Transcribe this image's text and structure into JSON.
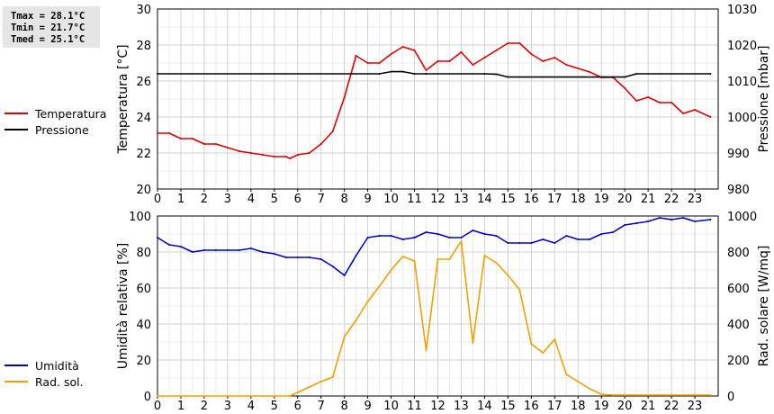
{
  "stats": {
    "tmax": "Tmax = 28.1°C",
    "tmin": "Tmin = 21.7°C",
    "tmed": "Tmed = 25.1°C"
  },
  "chart_data": [
    {
      "type": "line",
      "x_ticks": [
        "0",
        "1",
        "2",
        "3",
        "4",
        "5",
        "6",
        "7",
        "8",
        "9",
        "10",
        "11",
        "12",
        "13",
        "14",
        "15",
        "16",
        "17",
        "18",
        "19",
        "20",
        "21",
        "22",
        "23"
      ],
      "xlim": [
        0,
        24
      ],
      "ylabel_left": "Temperatura [°C]",
      "ylabel_right": "Pressione [mbar]",
      "ylim_left": [
        20,
        30
      ],
      "ylim_right": [
        980,
        1030
      ],
      "yticks_left": [
        "20",
        "22",
        "24",
        "26",
        "28",
        "30"
      ],
      "yticks_right": [
        "980",
        "990",
        "1000",
        "1010",
        "1020",
        "1030"
      ],
      "grid": true,
      "legend_position": "left",
      "series": [
        {
          "name": "Temperatura",
          "axis": "left",
          "color": "#dd0000",
          "x": [
            0,
            0.5,
            1,
            1.5,
            2,
            2.5,
            3,
            3.5,
            4,
            4.5,
            5,
            5.5,
            5.67,
            6,
            6.5,
            7,
            7.5,
            8,
            8.5,
            9,
            9.5,
            10,
            10.5,
            11,
            11.5,
            12,
            12.5,
            13,
            13.5,
            14,
            14.5,
            15,
            15.5,
            16,
            16.5,
            17,
            17.5,
            18,
            18.5,
            19,
            19.5,
            20,
            20.5,
            21,
            21.5,
            22,
            22.5,
            23,
            23.67
          ],
          "values": [
            23.1,
            23.1,
            22.8,
            22.8,
            22.5,
            22.5,
            22.3,
            22.1,
            22.0,
            21.9,
            21.8,
            21.8,
            21.7,
            21.9,
            22.0,
            22.5,
            23.2,
            25.1,
            27.4,
            27.0,
            27.0,
            27.5,
            27.9,
            27.7,
            26.6,
            27.1,
            27.1,
            27.6,
            26.9,
            27.3,
            27.7,
            28.1,
            28.1,
            27.5,
            27.1,
            27.3,
            26.9,
            26.7,
            26.5,
            26.2,
            26.2,
            25.6,
            24.9,
            25.1,
            24.8,
            24.8,
            24.2,
            24.4,
            24.0
          ]
        },
        {
          "name": "Pressione",
          "axis": "right",
          "color": "#000000",
          "x": [
            0,
            9.5,
            10,
            10.5,
            11,
            11.5,
            14,
            14.5,
            15,
            19,
            19.5,
            20,
            20.5,
            23.67
          ],
          "values": [
            1012,
            1012,
            1012.6,
            1012.6,
            1012,
            1012,
            1012,
            1011.9,
            1011.1,
            1011.1,
            1011.1,
            1011.1,
            1012,
            1012
          ]
        }
      ]
    },
    {
      "type": "line",
      "x_ticks": [
        "0",
        "1",
        "2",
        "3",
        "4",
        "5",
        "6",
        "7",
        "8",
        "9",
        "10",
        "11",
        "12",
        "13",
        "14",
        "15",
        "16",
        "17",
        "18",
        "19",
        "20",
        "21",
        "22",
        "23"
      ],
      "xlim": [
        0,
        24
      ],
      "ylabel_left": "Umidità relativa [%]",
      "ylabel_right": "Rad. solare [W/mq]",
      "ylim_left": [
        0,
        100
      ],
      "ylim_right": [
        0,
        1000
      ],
      "yticks_left": [
        "0",
        "20",
        "40",
        "60",
        "80",
        "100"
      ],
      "yticks_right": [
        "0",
        "200",
        "400",
        "600",
        "800",
        "1000"
      ],
      "grid": true,
      "legend_position": "left",
      "series": [
        {
          "name": "Umidità",
          "axis": "left",
          "color": "#0000cc",
          "x": [
            0,
            0.5,
            1,
            1.5,
            2,
            2.5,
            3,
            3.5,
            4,
            4.5,
            5,
            5.5,
            6,
            6.5,
            7,
            7.5,
            8,
            8.5,
            9,
            9.5,
            10,
            10.5,
            11,
            11.5,
            12,
            12.5,
            13,
            13.5,
            14,
            14.5,
            15,
            15.5,
            16,
            16.5,
            17,
            17.5,
            18,
            18.5,
            19,
            19.5,
            20,
            20.5,
            21,
            21.5,
            22,
            22.5,
            23,
            23.67
          ],
          "values": [
            88,
            84,
            83,
            80,
            81,
            81,
            81,
            81,
            82,
            80,
            79,
            77,
            77,
            77,
            76,
            72,
            67,
            78,
            88,
            89,
            89,
            87,
            88,
            91,
            90,
            88,
            88,
            92,
            90,
            89,
            85,
            85,
            85,
            87,
            85,
            89,
            87,
            87,
            90,
            91,
            95,
            96,
            97,
            99,
            98,
            99,
            97,
            98
          ]
        },
        {
          "name": "Rad. sol.",
          "axis": "right",
          "color": "#f0a000",
          "x": [
            0,
            5.67,
            6,
            6.5,
            7,
            7.5,
            8,
            8.5,
            9,
            9.5,
            10,
            10.5,
            11,
            11.5,
            12,
            12.5,
            13,
            13.5,
            14,
            14.5,
            15,
            15.5,
            16,
            16.5,
            17,
            17.5,
            18,
            18.5,
            19,
            19.5,
            20,
            21,
            22,
            23,
            23.67
          ],
          "values": [
            0,
            0,
            20,
            50,
            80,
            105,
            330,
            420,
            525,
            610,
            700,
            775,
            750,
            255,
            760,
            760,
            860,
            295,
            780,
            740,
            670,
            590,
            290,
            240,
            315,
            120,
            80,
            40,
            10,
            5,
            5,
            5,
            5,
            5,
            5
          ]
        }
      ]
    }
  ]
}
